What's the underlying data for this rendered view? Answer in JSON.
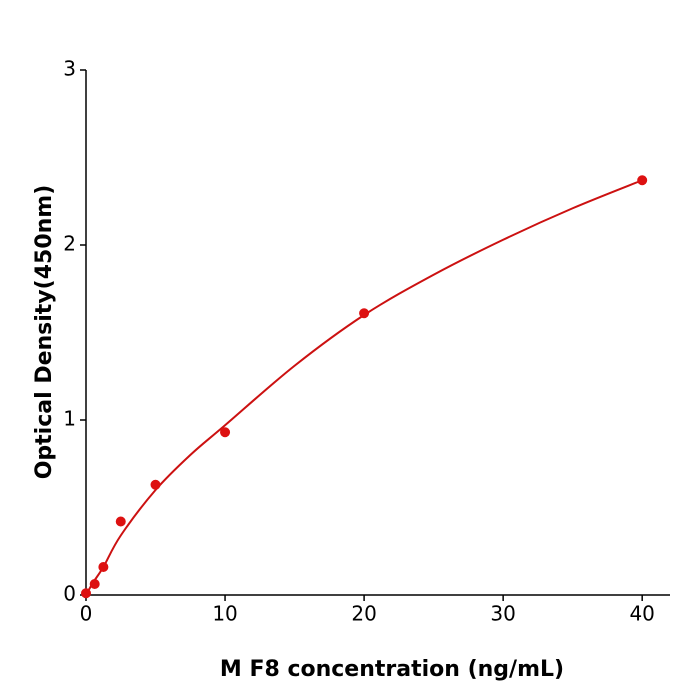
{
  "chart_data": {
    "type": "scatter",
    "x_label": "M  F8 concentration (ng/mL)",
    "y_label": "Optical Density(450nm)",
    "xlim": [
      0,
      42
    ],
    "xticks": [
      0,
      10,
      20,
      30,
      40
    ],
    "ylim": [
      0,
      3
    ],
    "yticks": [
      0,
      1,
      2,
      3
    ],
    "series": [
      {
        "kind": "scatter",
        "color": "#dd1111",
        "x": [
          0,
          0.625,
          1.25,
          2.5,
          5,
          10,
          20,
          40
        ],
        "values": [
          0.01,
          0.063,
          0.16,
          0.42,
          0.63,
          0.93,
          1.61,
          2.37
        ]
      },
      {
        "kind": "line",
        "color": "#cc1111",
        "x": [
          0,
          0.5,
          1.25,
          2.5,
          5,
          7.5,
          10,
          15,
          20,
          25,
          30,
          35,
          40
        ],
        "values": [
          0,
          0.07,
          0.16,
          0.34,
          0.6,
          0.8,
          0.97,
          1.31,
          1.6,
          1.83,
          2.03,
          2.21,
          2.37
        ]
      }
    ]
  }
}
